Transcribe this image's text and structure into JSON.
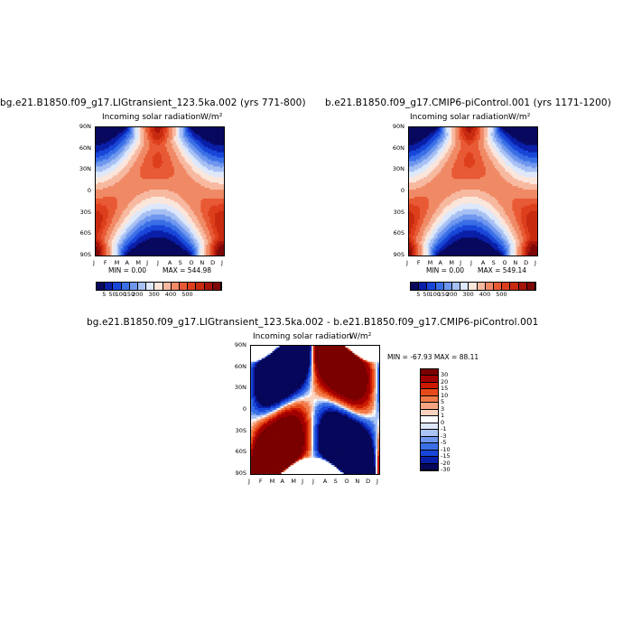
{
  "chart_data": [
    {
      "type": "heatmap",
      "title": "bg.e21.B1850.f09_g17.LIGtransient_123.5ka.002 (yrs 771-800)",
      "subtitle": "Incoming solar radiation",
      "units": "W/m²",
      "x_ticks": [
        "J",
        "F",
        "M",
        "A",
        "M",
        "J",
        "J",
        "A",
        "S",
        "O",
        "N",
        "D",
        "J"
      ],
      "y_ticks": [
        "90N",
        "60N",
        "30N",
        "0",
        "30S",
        "60S",
        "90S"
      ],
      "min_text": "MIN =    0.00",
      "max_text": "MAX = 544.98",
      "colorbar_labels": [
        "5",
        "50",
        "100",
        "150",
        "200",
        "300",
        "400",
        "500"
      ]
    },
    {
      "type": "heatmap",
      "title": "b.e21.B1850.f09_g17.CMIP6-piControl.001 (yrs 1171-1200)",
      "subtitle": "Incoming solar radiation",
      "units": "W/m²",
      "x_ticks": [
        "J",
        "F",
        "M",
        "A",
        "M",
        "J",
        "J",
        "A",
        "S",
        "O",
        "N",
        "D",
        "J"
      ],
      "y_ticks": [
        "90N",
        "60N",
        "30N",
        "0",
        "30S",
        "60S",
        "90S"
      ],
      "min_text": "MIN =    0.00",
      "max_text": "MAX = 549.14",
      "colorbar_labels": [
        "5",
        "50",
        "100",
        "150",
        "200",
        "300",
        "400",
        "500"
      ]
    },
    {
      "type": "heatmap",
      "title": "bg.e21.B1850.f09_g17.LIGtransient_123.5ka.002 - b.e21.B1850.f09_g17.CMIP6-piControl.001",
      "subtitle": "Incoming solar radiation",
      "units": "W/m²",
      "x_ticks": [
        "J",
        "F",
        "M",
        "A",
        "M",
        "J",
        "J",
        "A",
        "S",
        "O",
        "N",
        "D",
        "J"
      ],
      "y_ticks": [
        "90N",
        "60N",
        "30N",
        "0",
        "30S",
        "60S",
        "90S"
      ],
      "minmax_text": "MIN = -67.93 MAX =  88.11",
      "colorbar_labels": [
        "30",
        "20",
        "15",
        "10",
        "5",
        "3",
        "1",
        "0",
        "-1",
        "-3",
        "-5",
        "-10",
        "-15",
        "-20",
        "-30"
      ]
    }
  ],
  "colors": {
    "abs_scale": [
      "#08085e",
      "#0a1fa8",
      "#1846d8",
      "#3a6fe6",
      "#6f97ee",
      "#a7c0f4",
      "#dde8fb",
      "#fbe6dc",
      "#f7b9a0",
      "#f08a66",
      "#e85a35",
      "#dd3f1c",
      "#c82a10",
      "#a6140a",
      "#7e0707"
    ],
    "diff_scale": [
      "#7a0000",
      "#a30000",
      "#cc1a00",
      "#e64a1a",
      "#f07a48",
      "#f6a582",
      "#fbd3bf",
      "#ffffff",
      "#dde8fb",
      "#a9c4f5",
      "#6f97ee",
      "#3a6fe6",
      "#1846d8",
      "#0a1fa8",
      "#06065a"
    ]
  }
}
